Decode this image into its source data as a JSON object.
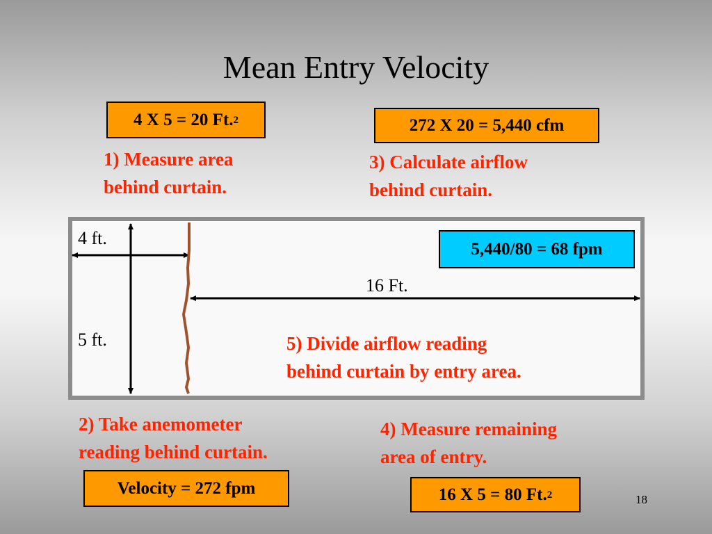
{
  "slide": {
    "title": "Mean Entry Velocity",
    "page_number": "18"
  },
  "formulas": {
    "area_behind_curtain": {
      "text": "4 X 5 = 20 Ft.",
      "superscript": "2"
    },
    "airflow": {
      "text": "272 X 20 = 5,440 cfm"
    },
    "entry_velocity": {
      "text": "5,440/80 = 68 fpm"
    },
    "velocity": {
      "text": "Velocity = 272 fpm"
    },
    "remaining_area": {
      "text": "16 X 5 = 80 Ft.",
      "superscript": "2"
    }
  },
  "steps": {
    "step1": {
      "line1": "1) Measure area",
      "line2": "behind curtain."
    },
    "step2": {
      "line1": "2) Take anemometer",
      "line2": "reading behind curtain."
    },
    "step3": {
      "line1": "3) Calculate airflow",
      "line2": "behind curtain."
    },
    "step4": {
      "line1": "4) Measure  remaining",
      "line2": "area of entry."
    },
    "step5": {
      "line1": "5) Divide airflow reading",
      "line2": "behind curtain by entry area."
    }
  },
  "dimensions": {
    "width": "4 ft.",
    "height": "5 ft.",
    "length": "16 Ft."
  },
  "colors": {
    "formula_box": "#ff9900",
    "result_box": "#00ccff",
    "step_text": "#ff2400",
    "curtain": "#a0522d",
    "panel_border": "#8c8c8c"
  }
}
